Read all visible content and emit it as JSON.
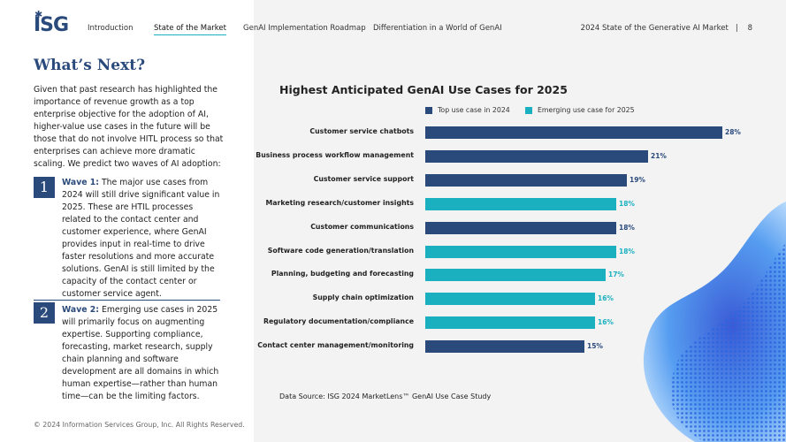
{
  "nav": {
    "logo": "ISG",
    "links": [
      "Introduction",
      "State of the Market",
      "GenAI Implementation Roadmap",
      "Differentiation in a World of GenAI"
    ],
    "active": "State of the Market",
    "doc_title": "2024 State of the Generative AI Market",
    "separator": "|",
    "page": "8"
  },
  "left": {
    "heading": "What’s Next?",
    "intro": "Given that past research has highlighted the importance of revenue growth as a top enterprise objective for the adoption of AI, higher-value use cases in the future will be those that do not involve HITL process so that enterprises can achieve more dramatic scaling. We predict two waves of AI adoption:",
    "waves": [
      {
        "num": "1",
        "title": "Wave 1:",
        "text": " The major use cases from 2024 will still drive significant value in 2025. These are HTIL processes related to the contact center and customer experience, where GenAI provides input in real-time to drive faster resolutions and more accurate solutions. GenAI is still limited by the capacity of the contact center or customer service agent."
      },
      {
        "num": "2",
        "title": "Wave 2:",
        "text": " Emerging use cases in 2025 will primarily focus on augmenting expertise. Supporting compliance, forecasting, market research, supply chain planning and software development are all domains in which human expertise—rather than human time—can be the limiting factors."
      }
    ],
    "copyright": "© 2024 Information Services Group, Inc. All Rights Reserved."
  },
  "chart_data": {
    "type": "bar",
    "orientation": "horizontal",
    "title": "Highest Anticipated GenAI Use Cases for 2025",
    "legend": [
      {
        "name": "Top use case in 2024",
        "color": "#2a4a7c"
      },
      {
        "name": "Emerging use case for 2025",
        "color": "#1ab0c0"
      }
    ],
    "legend_position": "top",
    "grid": false,
    "categories": [
      "Customer service chatbots",
      "Business process workflow management",
      "Customer service support",
      "Marketing research/customer insights",
      "Customer communications",
      "Software code generation/translation",
      "Planning, budgeting and forecasting",
      "Supply chain optimization",
      "Regulatory documentation/compliance",
      "Contact center management/monitoring"
    ],
    "values": [
      28,
      21,
      19,
      18,
      18,
      18,
      17,
      16,
      16,
      15
    ],
    "series_index": [
      0,
      0,
      0,
      1,
      0,
      1,
      1,
      1,
      1,
      0
    ],
    "value_suffix": "%",
    "source": "Data Source: ISG 2024 MarketLens™ GenAI Use Case Study"
  }
}
